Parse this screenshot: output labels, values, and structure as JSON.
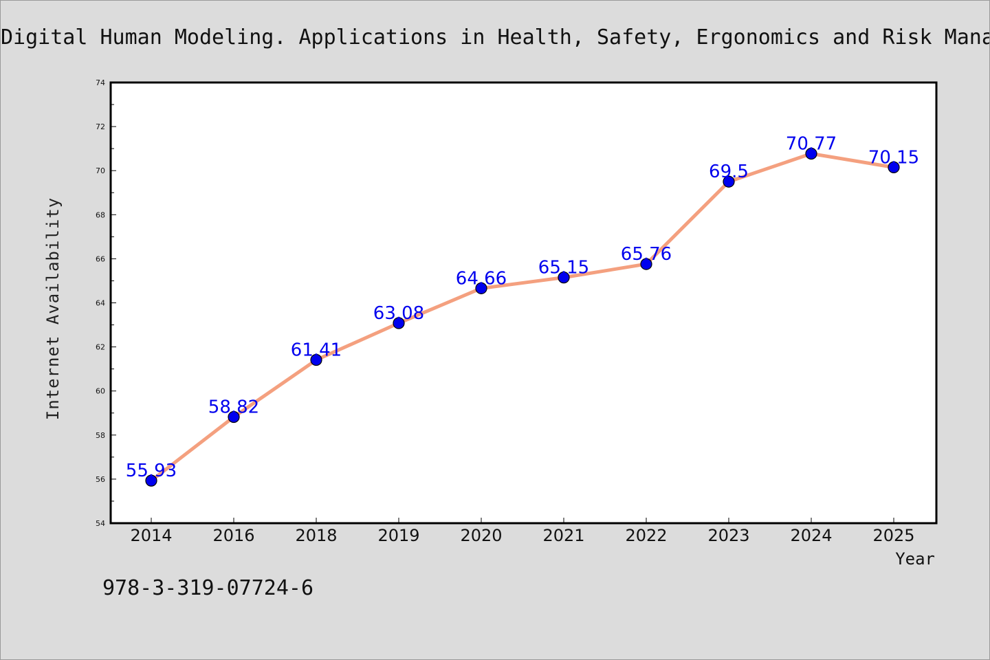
{
  "title": "Digital Human Modeling. Applications in Health, Safety, Ergonomics and Risk Mana",
  "footer_text": "978-3-319-07724-6",
  "colors": {
    "background": "#dcdcdc",
    "plot_area": "#ffffff",
    "line": "#f4a07f",
    "marker": "#0000ee",
    "data_label": "#0000ee"
  },
  "chart_data": {
    "type": "line",
    "categories": [
      "2014",
      "2016",
      "2018",
      "2019",
      "2020",
      "2021",
      "2022",
      "2023",
      "2024",
      "2025"
    ],
    "values": [
      55.93,
      58.82,
      61.41,
      63.08,
      64.66,
      65.15,
      65.76,
      69.5,
      70.77,
      70.15
    ],
    "data_labels": [
      "55.93",
      "58.82",
      "61.41",
      "63.08",
      "64.66",
      "65.15",
      "65.76",
      "69.5",
      "70.77",
      "70.15"
    ],
    "xlabel": "Year",
    "ylabel": "Internet Availability",
    "ylim": [
      54,
      74
    ],
    "yticks": [
      "54",
      "56",
      "58",
      "60",
      "62",
      "64",
      "66",
      "68",
      "70",
      "72",
      "74"
    ],
    "grid": false,
    "legend": "none"
  }
}
